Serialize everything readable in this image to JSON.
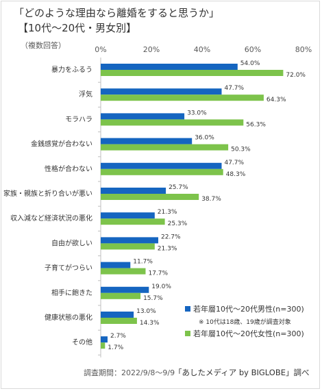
{
  "title": {
    "line1": "「どのような理由なら離婚をすると思うか」",
    "line2": "【10代～20代・男女別】"
  },
  "note_multi": "（複数回答）",
  "footer": {
    "period": "調査期間：2022/9/8～9/9",
    "source": "「あしたメディア by BIGLOBE」調べ"
  },
  "colors": {
    "male": "#1565c0",
    "female": "#7dc34b"
  },
  "chart_data": {
    "type": "bar",
    "orientation": "horizontal",
    "categories": [
      "暴力をふるう",
      "浮気",
      "モラハラ",
      "金銭感覚が合わない",
      "性格が合わない",
      "家族・親族と折り合いが悪い",
      "収入減など経済状況の悪化",
      "自由が欲しい",
      "子育てがつらい",
      "相手に飽きた",
      "健康状態の悪化",
      "その他"
    ],
    "series": [
      {
        "name": "若年層10代～20代男性(n=300)",
        "values": [
          54.0,
          47.7,
          33.0,
          36.0,
          47.7,
          25.7,
          21.3,
          22.7,
          11.7,
          19.0,
          13.0,
          2.7
        ]
      },
      {
        "name": "若年層10代～20代女性(n=300)",
        "values": [
          72.0,
          64.3,
          56.3,
          50.3,
          48.3,
          38.7,
          25.3,
          21.3,
          17.7,
          15.7,
          14.3,
          1.7
        ]
      }
    ],
    "xlim": [
      0,
      80
    ],
    "ticks": [
      "0%",
      "20%",
      "40%",
      "60%",
      "80%"
    ],
    "grid": false,
    "legend_position": "bottom-right",
    "legend_note": "※ 10代は18歳、19歳が調査対象"
  }
}
